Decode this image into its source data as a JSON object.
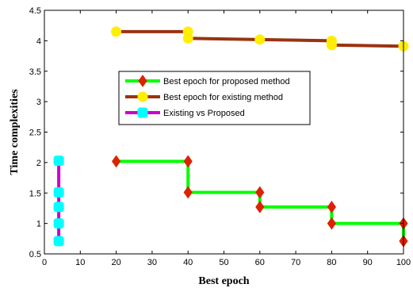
{
  "chart_data": {
    "type": "line",
    "title": "",
    "xlabel": "Best epoch",
    "ylabel": "Time complexities",
    "xlim": [
      0,
      100
    ],
    "ylim": [
      0.5,
      4.5
    ],
    "xticks": [
      0,
      10,
      20,
      30,
      40,
      50,
      60,
      70,
      80,
      90,
      100
    ],
    "xtick_labels": [
      "0",
      "10",
      "20",
      "30",
      "40",
      "50",
      "60",
      "70",
      "80",
      "90",
      "100"
    ],
    "yticks": [
      0.5,
      1,
      1.5,
      2,
      2.5,
      3,
      3.5,
      4,
      4.5
    ],
    "ytick_labels": [
      "0.5",
      "1",
      "1.5",
      "2",
      "2.5",
      "3",
      "3.5",
      "4",
      "4.5"
    ],
    "grid": false,
    "legend_position": "center",
    "series": [
      {
        "name": "Best epoch for proposed method",
        "line_color": "#00ff00",
        "marker_color": "#dd2200",
        "marker": "diamond",
        "x": [
          20,
          40,
          40,
          60,
          60,
          80,
          80,
          100,
          100
        ],
        "y": [
          2.02,
          2.02,
          1.51,
          1.51,
          1.27,
          1.27,
          1.0,
          1.0,
          0.71
        ]
      },
      {
        "name": "Best epoch for existing method",
        "line_color": "#993311",
        "marker_color": "#ffee00",
        "marker": "circle",
        "x": [
          20,
          40,
          40,
          60,
          80,
          80,
          100
        ],
        "y": [
          4.15,
          4.15,
          4.04,
          4.02,
          4.0,
          3.93,
          3.91
        ]
      },
      {
        "name": "Existing vs Proposed",
        "line_color": "#cc00cc",
        "marker_color": "#00ffff",
        "marker": "square",
        "x": [
          4,
          4,
          4,
          4,
          4
        ],
        "y": [
          2.03,
          1.51,
          1.27,
          1.0,
          0.71
        ]
      }
    ]
  }
}
